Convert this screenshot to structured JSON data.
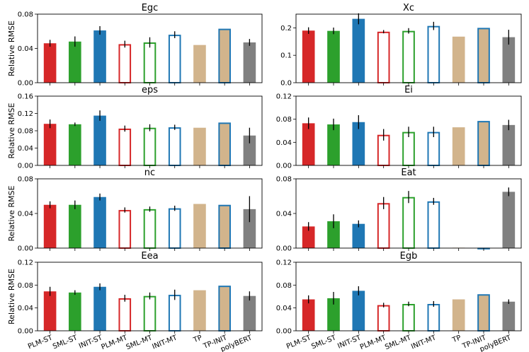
{
  "chart_data": {
    "type": "bar",
    "ylabel": "Relative RMSE",
    "categories": [
      "PLM-ST",
      "SML-ST",
      "INIT-ST",
      "PLM-MT",
      "SML-MT",
      "INIT-MT",
      "TP",
      "TP-INIT",
      "polyBERT"
    ],
    "styles": [
      "solid",
      "solid",
      "solid",
      "hollow",
      "hollow",
      "hollow",
      "solid",
      "solid_edge",
      "solid"
    ],
    "colors": {
      "red": "#d62728",
      "green": "#2ca02c",
      "blue": "#1f77b4",
      "tan": "#d2b48c",
      "gray": "#808080",
      "error": "#000000"
    },
    "bar_colors": [
      "#d62728",
      "#2ca02c",
      "#1f77b4",
      "#d62728",
      "#2ca02c",
      "#1f77b4",
      "#d2b48c",
      "#d2b48c",
      "#808080"
    ],
    "edge_colors": [
      "#d62728",
      "#2ca02c",
      "#1f77b4",
      "#d62728",
      "#2ca02c",
      "#1f77b4",
      "#d2b48c",
      "#1f77b4",
      "#808080"
    ],
    "panels": [
      {
        "title": "Egc",
        "ylim": [
          0,
          0.08
        ],
        "yticks": [
          "0.00",
          "0.04",
          "0.08"
        ],
        "tickvals": [
          0,
          0.04,
          0.08
        ],
        "values": [
          0.046,
          0.048,
          0.061,
          0.045,
          0.047,
          0.056,
          0.044,
          0.063,
          0.047
        ],
        "errors": [
          0.004,
          0.006,
          0.005,
          0.004,
          0.006,
          0.004,
          0,
          0,
          0.004
        ]
      },
      {
        "title": "Xc",
        "ylim": [
          0,
          0.25
        ],
        "yticks": [
          "0.0",
          "0.1",
          "0.2"
        ],
        "tickvals": [
          0,
          0.1,
          0.2
        ],
        "values": [
          0.19,
          0.189,
          0.233,
          0.186,
          0.189,
          0.207,
          0.168,
          0.2,
          0.166
        ],
        "errors": [
          0.012,
          0.012,
          0.02,
          0.006,
          0.01,
          0.015,
          0,
          0,
          0.027
        ]
      },
      {
        "title": "eps",
        "ylim": [
          0,
          0.16
        ],
        "yticks": [
          "0.00",
          "0.04",
          "0.08",
          "0.12",
          "0.16"
        ],
        "tickvals": [
          0,
          0.04,
          0.08,
          0.12,
          0.16
        ],
        "values": [
          0.096,
          0.095,
          0.115,
          0.085,
          0.087,
          0.088,
          0.087,
          0.099,
          0.069
        ],
        "errors": [
          0.01,
          0.004,
          0.012,
          0.007,
          0.008,
          0.006,
          0,
          0,
          0.018
        ]
      },
      {
        "title": "Ei",
        "ylim": [
          0,
          0.12
        ],
        "yticks": [
          "0.00",
          "0.04",
          "0.08",
          "0.12"
        ],
        "tickvals": [
          0,
          0.04,
          0.08,
          0.12
        ],
        "values": [
          0.073,
          0.071,
          0.075,
          0.053,
          0.058,
          0.058,
          0.066,
          0.077,
          0.07
        ],
        "errors": [
          0.01,
          0.01,
          0.012,
          0.01,
          0.009,
          0.009,
          0,
          0,
          0.009
        ]
      },
      {
        "title": "nc",
        "ylim": [
          0,
          0.08
        ],
        "yticks": [
          "0.00",
          "0.04",
          "0.08"
        ],
        "tickvals": [
          0,
          0.04,
          0.08
        ],
        "values": [
          0.05,
          0.05,
          0.059,
          0.044,
          0.045,
          0.046,
          0.051,
          0.05,
          0.045
        ],
        "errors": [
          0.004,
          0.005,
          0.004,
          0.003,
          0.003,
          0.003,
          0,
          0,
          0.015
        ]
      },
      {
        "title": "Eat",
        "ylim": [
          0,
          0.08
        ],
        "yticks": [
          "0.00",
          "0.04",
          "0.08"
        ],
        "tickvals": [
          0,
          0.04,
          0.08
        ],
        "values": [
          0.025,
          0.031,
          0.028,
          0.052,
          0.059,
          0.054,
          0.0005,
          0.0005,
          0.065
        ],
        "errors": [
          0.005,
          0.008,
          0.004,
          0.007,
          0.007,
          0.004,
          0,
          0,
          0.005
        ]
      },
      {
        "title": "Eea",
        "ylim": [
          0,
          0.12
        ],
        "yticks": [
          "0.00",
          "0.04",
          "0.08",
          "0.12"
        ],
        "tickvals": [
          0,
          0.04,
          0.08,
          0.12
        ],
        "values": [
          0.069,
          0.067,
          0.077,
          0.057,
          0.061,
          0.063,
          0.071,
          0.079,
          0.061
        ],
        "errors": [
          0.008,
          0.004,
          0.006,
          0.006,
          0.006,
          0.009,
          0,
          0,
          0.008
        ]
      },
      {
        "title": "Egb",
        "ylim": [
          0,
          0.12
        ],
        "yticks": [
          "0.00",
          "0.04",
          "0.08",
          "0.12"
        ],
        "tickvals": [
          0,
          0.04,
          0.08,
          0.12
        ],
        "values": [
          0.055,
          0.057,
          0.07,
          0.045,
          0.047,
          0.047,
          0.055,
          0.064,
          0.051
        ],
        "errors": [
          0.007,
          0.011,
          0.008,
          0.004,
          0.004,
          0.005,
          0,
          0,
          0.004
        ]
      }
    ]
  }
}
